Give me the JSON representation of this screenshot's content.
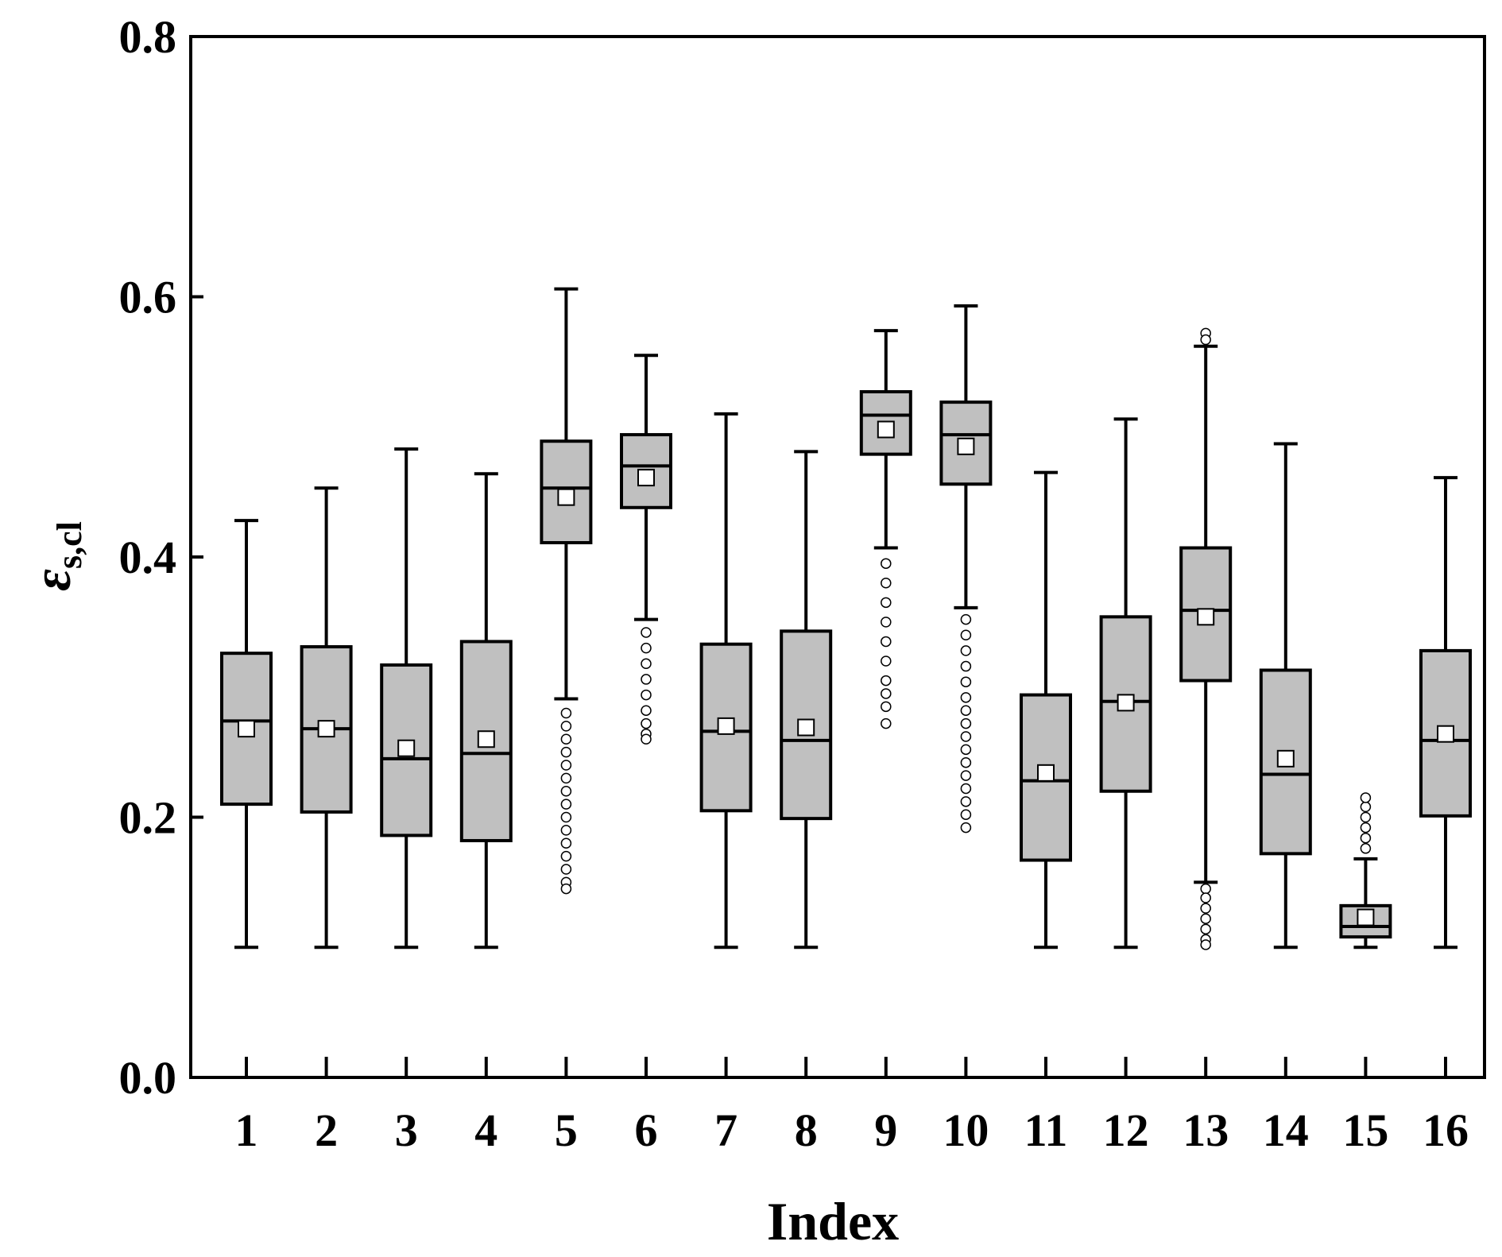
{
  "chart_data": {
    "type": "box",
    "xlabel": "Index",
    "ylabel": {
      "symbol": "ε",
      "subscript": "s,cl"
    },
    "ylim": [
      0.0,
      0.8
    ],
    "yticks": [
      "0.0",
      "0.2",
      "0.4",
      "0.6",
      "0.8"
    ],
    "grid": false,
    "colors": {
      "box_fill": "#c0c0c0",
      "stroke": "#000000",
      "mean_marker": "#ffffff",
      "outlier_marker": "#ffffff"
    },
    "categories": [
      "1",
      "2",
      "3",
      "4",
      "5",
      "6",
      "7",
      "8",
      "9",
      "10",
      "11",
      "12",
      "13",
      "14",
      "15",
      "16"
    ],
    "boxes": [
      {
        "label": "1",
        "whisker_low": 0.1,
        "q1": 0.21,
        "median": 0.274,
        "q3": 0.326,
        "whisker_high": 0.428,
        "mean": 0.268,
        "outliers": []
      },
      {
        "label": "2",
        "whisker_low": 0.1,
        "q1": 0.204,
        "median": 0.268,
        "q3": 0.331,
        "whisker_high": 0.453,
        "mean": 0.268,
        "outliers": []
      },
      {
        "label": "3",
        "whisker_low": 0.1,
        "q1": 0.186,
        "median": 0.245,
        "q3": 0.317,
        "whisker_high": 0.483,
        "mean": 0.253,
        "outliers": []
      },
      {
        "label": "4",
        "whisker_low": 0.1,
        "q1": 0.182,
        "median": 0.249,
        "q3": 0.335,
        "whisker_high": 0.464,
        "mean": 0.26,
        "outliers": []
      },
      {
        "label": "5",
        "whisker_low": 0.291,
        "q1": 0.411,
        "median": 0.453,
        "q3": 0.489,
        "whisker_high": 0.606,
        "mean": 0.446,
        "outliers": [
          0.28,
          0.27,
          0.26,
          0.25,
          0.24,
          0.23,
          0.22,
          0.21,
          0.2,
          0.19,
          0.18,
          0.17,
          0.16,
          0.15,
          0.145
        ]
      },
      {
        "label": "6",
        "whisker_low": 0.352,
        "q1": 0.438,
        "median": 0.47,
        "q3": 0.494,
        "whisker_high": 0.555,
        "mean": 0.461,
        "outliers": [
          0.342,
          0.33,
          0.318,
          0.306,
          0.294,
          0.282,
          0.272,
          0.264,
          0.26
        ]
      },
      {
        "label": "7",
        "whisker_low": 0.1,
        "q1": 0.205,
        "median": 0.266,
        "q3": 0.333,
        "whisker_high": 0.51,
        "mean": 0.27,
        "outliers": []
      },
      {
        "label": "8",
        "whisker_low": 0.1,
        "q1": 0.199,
        "median": 0.259,
        "q3": 0.343,
        "whisker_high": 0.481,
        "mean": 0.269,
        "outliers": []
      },
      {
        "label": "9",
        "whisker_low": 0.407,
        "q1": 0.479,
        "median": 0.509,
        "q3": 0.527,
        "whisker_high": 0.574,
        "mean": 0.498,
        "outliers": [
          0.395,
          0.38,
          0.365,
          0.35,
          0.335,
          0.32,
          0.305,
          0.295,
          0.285,
          0.272
        ]
      },
      {
        "label": "10",
        "whisker_low": 0.361,
        "q1": 0.456,
        "median": 0.494,
        "q3": 0.519,
        "whisker_high": 0.593,
        "mean": 0.485,
        "outliers": [
          0.352,
          0.34,
          0.328,
          0.316,
          0.304,
          0.292,
          0.282,
          0.272,
          0.262,
          0.252,
          0.242,
          0.232,
          0.222,
          0.212,
          0.202,
          0.192
        ]
      },
      {
        "label": "11",
        "whisker_low": 0.1,
        "q1": 0.167,
        "median": 0.228,
        "q3": 0.294,
        "whisker_high": 0.465,
        "mean": 0.234,
        "outliers": []
      },
      {
        "label": "12",
        "whisker_low": 0.1,
        "q1": 0.22,
        "median": 0.289,
        "q3": 0.354,
        "whisker_high": 0.506,
        "mean": 0.288,
        "outliers": []
      },
      {
        "label": "13",
        "whisker_low": 0.15,
        "q1": 0.305,
        "median": 0.359,
        "q3": 0.407,
        "whisker_high": 0.562,
        "mean": 0.354,
        "outliers": [
          0.572,
          0.567,
          0.145,
          0.138,
          0.13,
          0.122,
          0.114,
          0.106,
          0.102
        ]
      },
      {
        "label": "14",
        "whisker_low": 0.1,
        "q1": 0.172,
        "median": 0.233,
        "q3": 0.313,
        "whisker_high": 0.487,
        "mean": 0.245,
        "outliers": []
      },
      {
        "label": "15",
        "whisker_low": 0.1,
        "q1": 0.108,
        "median": 0.116,
        "q3": 0.132,
        "whisker_high": 0.168,
        "mean": 0.123,
        "outliers": [
          0.176,
          0.184,
          0.192,
          0.2,
          0.208,
          0.215
        ]
      },
      {
        "label": "16",
        "whisker_low": 0.1,
        "q1": 0.201,
        "median": 0.259,
        "q3": 0.328,
        "whisker_high": 0.461,
        "mean": 0.264,
        "outliers": []
      }
    ]
  }
}
